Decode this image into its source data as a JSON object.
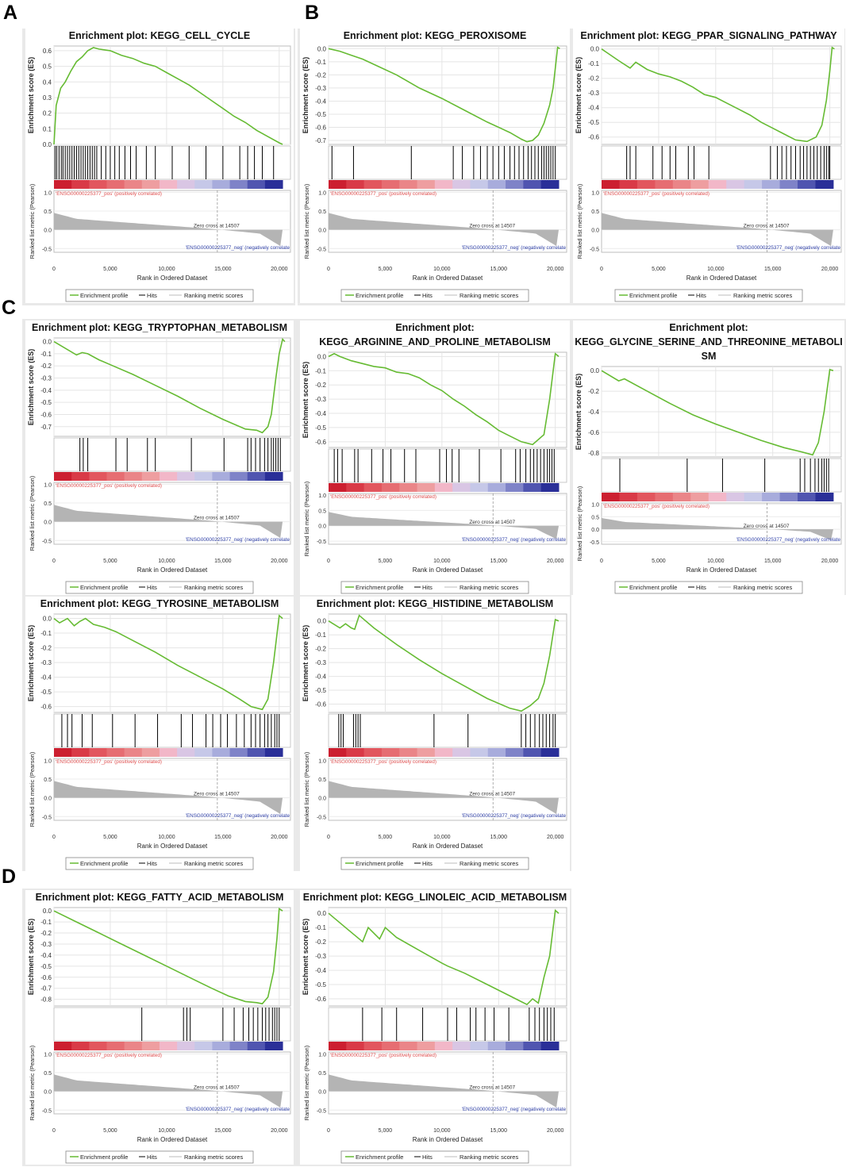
{
  "panel_labels": [
    "A",
    "B",
    "C",
    "D"
  ],
  "colors": {
    "profile": "#66bb33",
    "pos_label": "#e05050",
    "neg_label": "#3344aa",
    "ranked_fill": "#b4b4b4",
    "hit": "#000000",
    "heat": [
      "#cc1f30",
      "#d93a47",
      "#e2565e",
      "#e66d72",
      "#ea8588",
      "#ee9ea0",
      "#f2b7c8",
      "#d9c6e4",
      "#c6c8e8",
      "#a8acdc",
      "#7f83c8",
      "#5055b0",
      "#2a2f98"
    ]
  },
  "common": {
    "title_prefix": "Enrichment plot:",
    "es_axis_label": "Enrichment score (ES)",
    "metric_axis_label": "Ranked list metric (Pearson)",
    "x_axis_label": "Rank in Ordered Dataset",
    "x_ticks": [
      "0",
      "5,000",
      "10,000",
      "15,000",
      "20,000"
    ],
    "metric_ticks": [
      "1.0",
      "0.5",
      "0.0",
      "-0.5"
    ],
    "pos_label": "'ENSG00000225377_pos' (positively correlated)",
    "neg_label": "'ENSG00000225377_neg' (negatively correlate",
    "zero_cross": "Zero cross at 14507",
    "legend": [
      "Enrichment profile",
      "Hits",
      "Ranking metric scores"
    ]
  },
  "chart_data": [
    {
      "type": "line",
      "title": "KEGG_CELL_CYCLE",
      "xlabel": "Rank in Ordered Dataset",
      "ylabel": "Enrichment score (ES)",
      "es_ticks": [
        "0.6",
        "0.5",
        "0.4",
        "0.3",
        "0.2",
        "0.1",
        "0.0"
      ],
      "ylim": [
        0,
        0.63
      ],
      "x": [
        0,
        200,
        600,
        1000,
        1500,
        2000,
        2500,
        3000,
        3500,
        4000,
        5000,
        6000,
        7000,
        8000,
        9000,
        10000,
        11000,
        12000,
        13000,
        14000,
        15000,
        16000,
        17000,
        18000,
        19000,
        20000,
        20300
      ],
      "es": [
        0,
        0.25,
        0.36,
        0.4,
        0.47,
        0.53,
        0.56,
        0.6,
        0.62,
        0.61,
        0.6,
        0.57,
        0.55,
        0.52,
        0.5,
        0.46,
        0.42,
        0.38,
        0.33,
        0.28,
        0.23,
        0.18,
        0.14,
        0.09,
        0.05,
        0.01,
        0
      ],
      "hits": [
        100,
        250,
        450,
        650,
        800,
        1000,
        1200,
        1400,
        1600,
        1800,
        2000,
        2200,
        2400,
        2600,
        2800,
        3000,
        3200,
        3400,
        3600,
        3800,
        4200,
        4600,
        5000,
        5400,
        5800,
        6300,
        6800,
        7300,
        8200,
        9000,
        10500,
        12000,
        13500,
        15000,
        16500,
        17200,
        17800,
        18500,
        19500
      ]
    },
    {
      "type": "line",
      "title": "KEGG_PEROXISOME",
      "xlabel": "Rank in Ordered Dataset",
      "ylabel": "Enrichment score (ES)",
      "es_ticks": [
        "0.0",
        "-0.1",
        "-0.2",
        "-0.3",
        "-0.4",
        "-0.5",
        "-0.6",
        "-0.7"
      ],
      "ylim": [
        -0.73,
        0.02
      ],
      "x": [
        0,
        1000,
        2000,
        3000,
        4000,
        6000,
        8000,
        10000,
        12000,
        14000,
        16000,
        17000,
        17500,
        18000,
        18500,
        19000,
        19500,
        19800,
        20000,
        20200,
        20400
      ],
      "es": [
        0,
        -0.02,
        -0.05,
        -0.08,
        -0.12,
        -0.2,
        -0.3,
        -0.38,
        -0.47,
        -0.56,
        -0.64,
        -0.69,
        -0.71,
        -0.7,
        -0.66,
        -0.57,
        -0.43,
        -0.3,
        -0.15,
        0.01,
        0
      ],
      "hits": [
        300,
        2200,
        7300,
        11000,
        11800,
        12800,
        13400,
        14000,
        14500,
        15000,
        15500,
        16000,
        16400,
        16800,
        17200,
        17600,
        17900,
        18200,
        18500,
        18800,
        19000,
        19200,
        19400,
        19600,
        19800,
        20000
      ]
    },
    {
      "type": "line",
      "title": "KEGG_PPAR_SIGNALING_PATHWAY",
      "xlabel": "Rank in Ordered Dataset",
      "ylabel": "Enrichment score (ES)",
      "es_ticks": [
        "0.0",
        "-0.1",
        "-0.2",
        "-0.3",
        "-0.4",
        "-0.5",
        "-0.6"
      ],
      "ylim": [
        -0.65,
        0.02
      ],
      "x": [
        0,
        1500,
        2500,
        3000,
        4000,
        5000,
        6000,
        7000,
        8000,
        9000,
        10000,
        11000,
        12000,
        13000,
        14000,
        15000,
        16000,
        17000,
        18000,
        18800,
        19300,
        19700,
        20000,
        20200,
        20400
      ],
      "es": [
        0,
        -0.08,
        -0.13,
        -0.09,
        -0.14,
        -0.17,
        -0.19,
        -0.22,
        -0.26,
        -0.31,
        -0.33,
        -0.37,
        -0.41,
        -0.45,
        -0.5,
        -0.54,
        -0.58,
        -0.62,
        -0.63,
        -0.6,
        -0.52,
        -0.35,
        -0.15,
        0.01,
        0
      ],
      "hits": [
        2200,
        2500,
        3000,
        4500,
        5300,
        6000,
        6500,
        7600,
        8100,
        9400,
        14800,
        15400,
        15800,
        16200,
        16600,
        17000,
        17400,
        17700,
        18000,
        18300,
        18600,
        18900,
        19200,
        19500,
        19700,
        19900,
        20000
      ]
    },
    {
      "type": "line",
      "title": "KEGG_TRYPTOPHAN_METABOLISM",
      "xlabel": "Rank in Ordered Dataset",
      "ylabel": "Enrichment score (ES)",
      "es_ticks": [
        "0.0",
        "-0.1",
        "-0.2",
        "-0.3",
        "-0.4",
        "-0.5",
        "-0.6",
        "-0.7"
      ],
      "ylim": [
        -0.78,
        0.03
      ],
      "x": [
        0,
        2000,
        2500,
        3000,
        4000,
        5000,
        7000,
        9000,
        11000,
        13000,
        15000,
        17000,
        18000,
        18500,
        19000,
        19300,
        19700,
        20000,
        20300,
        20500
      ],
      "es": [
        0,
        -0.11,
        -0.09,
        -0.1,
        -0.15,
        -0.19,
        -0.27,
        -0.36,
        -0.45,
        -0.55,
        -0.64,
        -0.72,
        -0.73,
        -0.75,
        -0.7,
        -0.6,
        -0.3,
        -0.1,
        0.02,
        0
      ],
      "hits": [
        2300,
        2600,
        3000,
        5500,
        6500,
        8300,
        9000,
        12200,
        15100,
        17200,
        17500,
        17900,
        18300,
        18700,
        19000,
        19300,
        19500,
        19700,
        19900,
        20100
      ]
    },
    {
      "type": "line",
      "title": "KEGG_ARGININE_AND_PROLINE_METABOLISM",
      "xlabel": "Rank in Ordered Dataset",
      "ylabel": "Enrichment score (ES)",
      "es_ticks": [
        "0.0",
        "-0.1",
        "-0.2",
        "-0.3",
        "-0.4",
        "-0.5",
        "-0.6"
      ],
      "ylim": [
        -0.64,
        0.03
      ],
      "x": [
        0,
        500,
        1000,
        2000,
        3000,
        4000,
        5000,
        6000,
        7000,
        8000,
        9000,
        10000,
        11000,
        12000,
        13000,
        14000,
        15000,
        16000,
        17000,
        18000,
        19000,
        19500,
        20000,
        20300
      ],
      "es": [
        0,
        0.02,
        0,
        -0.03,
        -0.05,
        -0.07,
        -0.08,
        -0.11,
        -0.12,
        -0.15,
        -0.2,
        -0.24,
        -0.3,
        -0.35,
        -0.41,
        -0.46,
        -0.52,
        -0.56,
        -0.6,
        -0.62,
        -0.55,
        -0.3,
        0.02,
        0
      ],
      "hits": [
        500,
        800,
        1200,
        2300,
        2600,
        3800,
        4800,
        5500,
        6700,
        7700,
        9800,
        10400,
        10900,
        11500,
        13300,
        15200,
        16500,
        16900,
        17400,
        17800,
        18100,
        18400,
        18700,
        19000,
        19300,
        19500,
        19700,
        19900
      ]
    },
    {
      "type": "line",
      "title": "KEGG_GLYCINE_SERINE_AND_THREONINE_METABOLISM",
      "xlabel": "Rank in Ordered Dataset",
      "ylabel": "Enrichment score (ES)",
      "es_ticks": [
        "0.0",
        "-0.2",
        "-0.4",
        "-0.6",
        "-0.8"
      ],
      "ylim": [
        -0.84,
        0.04
      ],
      "x": [
        0,
        1500,
        2000,
        4000,
        6000,
        8000,
        10000,
        12000,
        14000,
        16000,
        17500,
        18500,
        19000,
        19500,
        20000,
        20300
      ],
      "es": [
        0,
        -0.1,
        -0.08,
        -0.2,
        -0.32,
        -0.43,
        -0.52,
        -0.6,
        -0.68,
        -0.75,
        -0.79,
        -0.82,
        -0.7,
        -0.4,
        0.01,
        0
      ],
      "hits": [
        1600,
        7500,
        10600,
        14300,
        17400,
        17800,
        18300,
        18700,
        19000,
        19300,
        19500,
        19700,
        19900
      ]
    },
    {
      "type": "line",
      "title": "KEGG_TYROSINE_METABOLISM",
      "xlabel": "Rank in Ordered Dataset",
      "ylabel": "Enrichment score (ES)",
      "es_ticks": [
        "0.0",
        "-0.1",
        "-0.2",
        "-0.3",
        "-0.4",
        "-0.5",
        "-0.6"
      ],
      "ylim": [
        -0.64,
        0.03
      ],
      "x": [
        0,
        500,
        1200,
        1800,
        2300,
        2800,
        3500,
        4500,
        5500,
        7000,
        9000,
        11000,
        13000,
        15000,
        16500,
        17500,
        18500,
        19000,
        19500,
        20000,
        20300
      ],
      "es": [
        0,
        -0.03,
        0,
        -0.05,
        -0.02,
        0,
        -0.04,
        -0.06,
        -0.09,
        -0.15,
        -0.23,
        -0.32,
        -0.4,
        -0.48,
        -0.55,
        -0.6,
        -0.62,
        -0.55,
        -0.3,
        0.02,
        0
      ],
      "hits": [
        700,
        1200,
        1600,
        2500,
        3400,
        5200,
        7200,
        9200,
        11300,
        12300,
        13500,
        14100,
        14800,
        15400,
        16200,
        16900,
        17500,
        17900,
        18300,
        18700,
        19000,
        19300,
        19600,
        19800,
        20000
      ]
    },
    {
      "type": "line",
      "title": "KEGG_HISTIDINE_METABOLISM",
      "xlabel": "Rank in Ordered Dataset",
      "ylabel": "Enrichment score (ES)",
      "es_ticks": [
        "0.0",
        "-0.1",
        "-0.2",
        "-0.3",
        "-0.4",
        "-0.5",
        "-0.6"
      ],
      "ylim": [
        -0.66,
        0.05
      ],
      "x": [
        0,
        1000,
        1500,
        2000,
        2300,
        2700,
        4000,
        6000,
        8000,
        10000,
        12000,
        14000,
        16000,
        17000,
        17800,
        18500,
        19000,
        19500,
        20000,
        20300
      ],
      "es": [
        0,
        -0.05,
        -0.02,
        -0.05,
        -0.06,
        0.04,
        -0.05,
        -0.17,
        -0.28,
        -0.38,
        -0.47,
        -0.56,
        -0.63,
        -0.65,
        -0.61,
        -0.56,
        -0.45,
        -0.25,
        0.01,
        0
      ],
      "hits": [
        900,
        1100,
        1300,
        2200,
        2400,
        2600,
        2800,
        9300,
        12300,
        17000,
        17400,
        17800,
        18200,
        18600,
        18900,
        19200,
        19500,
        19800,
        20000
      ]
    },
    {
      "type": "line",
      "title": "KEGG_FATTY_ACID_METABOLISM",
      "xlabel": "Rank in Ordered Dataset",
      "ylabel": "Enrichment score (ES)",
      "es_ticks": [
        "0.0",
        "-0.1",
        "-0.2",
        "-0.3",
        "-0.4",
        "-0.5",
        "-0.6",
        "-0.7",
        "-0.8"
      ],
      "ylim": [
        -0.86,
        0.03
      ],
      "x": [
        0,
        2000,
        4000,
        6000,
        8000,
        10000,
        12000,
        14000,
        15500,
        17000,
        18000,
        18500,
        19000,
        19500,
        19800,
        20000,
        20300
      ],
      "es": [
        0,
        -0.1,
        -0.2,
        -0.3,
        -0.4,
        -0.5,
        -0.6,
        -0.7,
        -0.77,
        -0.82,
        -0.83,
        -0.84,
        -0.78,
        -0.55,
        -0.25,
        0.02,
        0
      ],
      "hits": [
        7800,
        11500,
        11800,
        12100,
        15000,
        16000,
        16800,
        17300,
        17700,
        18100,
        18500,
        18800,
        19100,
        19400,
        19600,
        19800,
        20000
      ]
    },
    {
      "type": "line",
      "title": "KEGG_LINOLEIC_ACID_METABOLISM",
      "xlabel": "Rank in Ordered Dataset",
      "ylabel": "Enrichment score (ES)",
      "es_ticks": [
        "0.0",
        "-0.1",
        "-0.2",
        "-0.3",
        "-0.4",
        "-0.5",
        "-0.6"
      ],
      "ylim": [
        -0.65,
        0.04
      ],
      "x": [
        0,
        1500,
        3000,
        3500,
        4500,
        5000,
        6000,
        8000,
        10000,
        10500,
        12000,
        14000,
        16000,
        17000,
        17500,
        18000,
        18500,
        19000,
        19500,
        20000,
        20300
      ],
      "es": [
        0,
        -0.1,
        -0.2,
        -0.1,
        -0.18,
        -0.1,
        -0.17,
        -0.26,
        -0.35,
        -0.37,
        -0.42,
        -0.5,
        -0.58,
        -0.62,
        -0.64,
        -0.6,
        -0.63,
        -0.45,
        -0.3,
        0.02,
        0
      ],
      "hits": [
        3000,
        4700,
        6000,
        8300,
        10500,
        11300,
        12500,
        13000,
        13800,
        14600,
        15900,
        17700,
        18200,
        18600,
        19000,
        19300,
        19600,
        19900
      ]
    }
  ]
}
